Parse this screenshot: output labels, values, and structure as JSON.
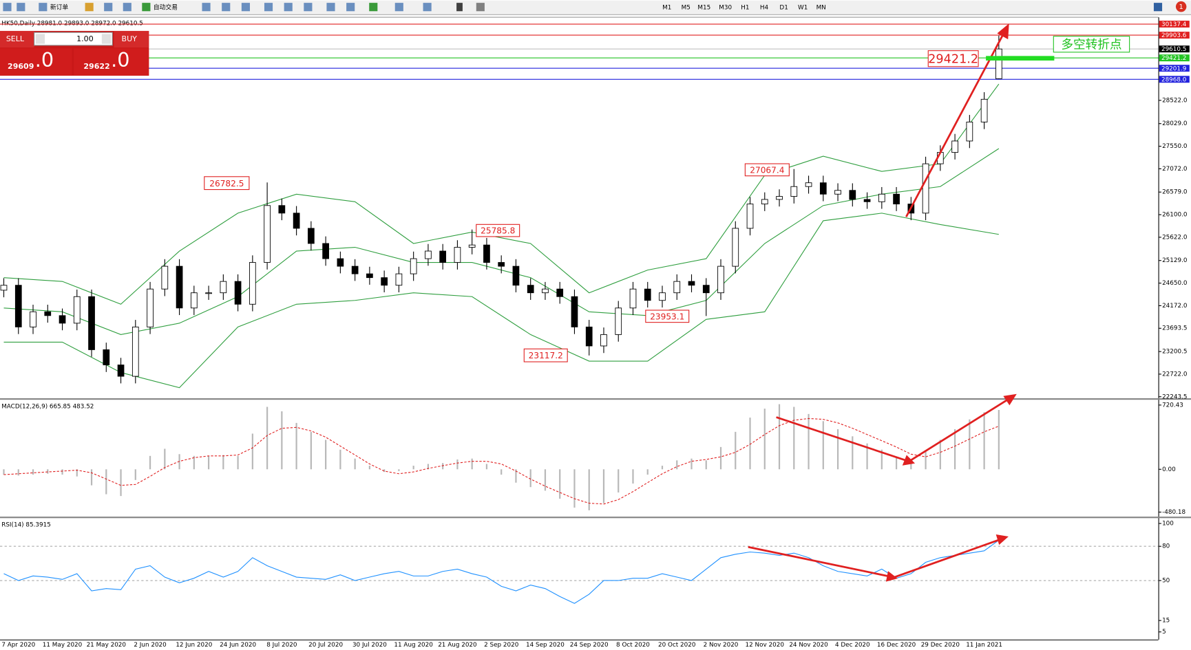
{
  "toolbar": {
    "buttons": [
      "新订单",
      "自动交易"
    ],
    "timeframes": [
      "M1",
      "M5",
      "M15",
      "M30",
      "H1",
      "H4",
      "D1",
      "W1",
      "MN"
    ],
    "notifications": 1
  },
  "trade_panel": {
    "sell": "SELL",
    "buy": "BUY",
    "lots": "1.00",
    "bid": "29609",
    "bid_tail": ".0",
    "ask": "29622",
    "ask_tail": ".0"
  },
  "chart_data": [
    {
      "type": "candlestick",
      "title": "HK50,Daily 28981.0 29893.0 28972.0 29610.5",
      "categories": [
        null,
        "7 Apr 2020",
        null,
        null,
        "11 May 2020",
        null,
        null,
        "21 May 2020",
        null,
        null,
        "2 Jun 2020",
        null,
        null,
        "12 Jun 2020",
        null,
        null,
        "24 Jun 2020",
        null,
        null,
        "8 Jul 2020",
        null,
        null,
        "20 Jul 2020",
        null,
        null,
        "30 Jul 2020",
        null,
        null,
        "11 Aug 2020",
        null,
        null,
        "21 Aug 2020",
        null,
        null,
        "2 Sep 2020",
        null,
        null,
        "14 Sep 2020",
        null,
        null,
        "24 Sep 2020",
        null,
        null,
        "8 Oct 2020",
        null,
        null,
        "20 Oct 2020",
        null,
        null,
        "2 Nov 2020",
        null,
        null,
        "12 Nov 2020",
        null,
        null,
        "24 Nov 2020",
        null,
        null,
        "4 Dec 2020",
        null,
        null,
        "16 Dec 2020",
        null,
        null,
        "29 Dec 2020",
        null,
        null,
        "11 Jan 2021",
        null
      ],
      "open": [
        24500,
        24605,
        23721,
        24043,
        23962,
        23801,
        24364,
        23239,
        22917,
        22676,
        23721,
        24525,
        25007,
        24123,
        24445,
        24445,
        24686,
        24203,
        25088,
        26294,
        26133,
        25811,
        25490,
        25168,
        25007,
        24847,
        24766,
        24605,
        24847,
        25168,
        25329,
        25088,
        25409,
        25458,
        25088,
        25007,
        24605,
        24445,
        24525,
        24364,
        23721,
        23319,
        23560,
        24123,
        24525,
        24284,
        24445,
        24686,
        24605,
        24445,
        25007,
        25811,
        26326,
        26423,
        26487,
        26696,
        26776,
        26535,
        26615,
        26423,
        26374,
        26535,
        26326,
        26133,
        27178,
        27419,
        27661,
        28063,
        28981
      ],
      "high": [
        24755,
        24755,
        24193,
        24193,
        24112,
        24514,
        24514,
        23389,
        23067,
        23871,
        24675,
        25157,
        25157,
        24595,
        24595,
        24836,
        24836,
        25238,
        26782.5,
        26444,
        26283,
        25961,
        25640,
        25318,
        25157,
        24997,
        24916,
        24997,
        25318,
        25479,
        25479,
        25559,
        25785.8,
        25608,
        25238,
        25157,
        24755,
        24675,
        24675,
        24514,
        23871,
        23710,
        24273,
        24675,
        24675,
        24595,
        24836,
        24836,
        24755,
        25157,
        25961,
        26476,
        26573,
        26637,
        27067.4,
        26926,
        26926,
        26765,
        26765,
        26573,
        26685,
        26685,
        26476,
        27328,
        27569,
        27811,
        28213,
        28695,
        29893
      ],
      "low": [
        24350,
        23571,
        23571,
        23812,
        23651,
        23651,
        23089,
        22767,
        22526,
        22526,
        23571,
        24375,
        23973,
        23973,
        24295,
        24295,
        24053,
        24053,
        24938,
        25983,
        25661,
        25340,
        25018,
        24857,
        24697,
        24616,
        24455,
        24455,
        24697,
        25018,
        24938,
        24938,
        25259,
        24938,
        24857,
        24455,
        24295,
        24295,
        24214,
        23571,
        23117.2,
        23169,
        23410,
        23973,
        24134,
        24134,
        24295,
        24455,
        23953.1,
        24295,
        24857,
        25661,
        26176,
        26273,
        26337,
        26546,
        26385,
        26385,
        26273,
        26224,
        26224,
        26176,
        25983,
        25983,
        27028,
        27269,
        27511,
        27913,
        28972
      ],
      "close": [
        24605,
        23721,
        24043,
        23962,
        23801,
        24364,
        23239,
        22917,
        22676,
        23721,
        24525,
        25007,
        24123,
        24445,
        24445,
        24686,
        24203,
        25088,
        26294,
        26133,
        25811,
        25490,
        25168,
        25007,
        24847,
        24766,
        24605,
        24847,
        25168,
        25329,
        25088,
        25409,
        25458,
        25088,
        25007,
        24605,
        24445,
        24525,
        24364,
        23721,
        23319,
        23560,
        24123,
        24525,
        24284,
        24445,
        24686,
        24605,
        24445,
        25007,
        25811,
        26326,
        26423,
        26487,
        26696,
        26776,
        26535,
        26615,
        26423,
        26374,
        26535,
        26326,
        26133,
        27178,
        27419,
        27661,
        28063,
        28545,
        29610.5
      ],
      "bollinger": [
        [
          24766,
          24686,
          24203,
          25329,
          26133,
          26535,
          26374,
          25490,
          25731,
          25490,
          24445,
          24927,
          25168,
          26937,
          27339,
          27017,
          27178,
          28867
        ],
        [
          24123,
          24043,
          23560,
          23801,
          24364,
          25329,
          25409,
          25088,
          25088,
          24766,
          24043,
          23962,
          24284,
          25490,
          26294,
          26535,
          26696,
          27500
        ],
        [
          23399,
          23399,
          22756,
          22435,
          23721,
          24203,
          24284,
          24445,
          24364,
          23560,
          22997,
          22997,
          23882,
          24043,
          25972,
          26133,
          25892,
          25683
        ]
      ],
      "bollinger_color": "#2e9e3e",
      "ylim": [
        22211.3,
        30282.1
      ],
      "yticks": [
        {
          "value": 28522,
          "label": "28522.0"
        },
        {
          "value": 28029,
          "label": "28029.0"
        },
        {
          "value": 27550,
          "label": "27550.0"
        },
        {
          "value": 27072,
          "label": "27072.0"
        },
        {
          "value": 26579,
          "label": "26579.0"
        },
        {
          "value": 26100,
          "label": "26100.0"
        },
        {
          "value": 25622,
          "label": "25622.0"
        },
        {
          "value": 25129,
          "label": "25129.0"
        },
        {
          "value": 24650,
          "label": "24650.0"
        },
        {
          "value": 24172,
          "label": "24172.0"
        },
        23693.5,
        23200.5,
        {
          "value": 22722,
          "label": "22722.0"
        },
        22243.5
      ],
      "levels": [
        {
          "value": 30137.4,
          "color": "#e02020",
          "line": "#e02020"
        },
        {
          "value": 29903.6,
          "color": "#e02020",
          "line": "#e02020"
        },
        {
          "value": 29610.5,
          "color": "#000000",
          "line": "#c0c0c0"
        },
        {
          "value": 29421.2,
          "color": "#22c322",
          "line": "#22c322"
        },
        {
          "value": 29201.9,
          "color": "#2222dd",
          "line": "#2222dd"
        },
        {
          "value": 28968,
          "label": "28968.0",
          "color": "#2222dd",
          "line": "#2222dd"
        }
      ],
      "annotations": [
        "26782.5",
        "25785.8",
        "23117.2",
        "23953.1",
        "27067.4",
        "29421.2",
        "多空转折点"
      ]
    },
    {
      "type": "macd",
      "title": "MACD(12,26,9) 665.85 483.52",
      "histogram": [
        -60,
        -70,
        -60,
        -50,
        -60,
        -80,
        -180,
        -280,
        -300,
        -120,
        150,
        230,
        170,
        150,
        150,
        160,
        150,
        400,
        700,
        650,
        520,
        420,
        330,
        220,
        120,
        40,
        -30,
        -20,
        40,
        60,
        70,
        110,
        120,
        60,
        -60,
        -150,
        -200,
        -240,
        -330,
        -430,
        -460,
        -380,
        -260,
        -160,
        -60,
        40,
        100,
        120,
        100,
        250,
        420,
        580,
        680,
        730,
        700,
        620,
        540,
        450,
        370,
        290,
        220,
        140,
        70,
        200,
        330,
        450,
        560,
        640,
        665.85
      ],
      "signal": [
        -60,
        -50,
        -40,
        -30,
        -20,
        -10,
        -40,
        -110,
        -180,
        -170,
        -80,
        20,
        90,
        130,
        150,
        150,
        160,
        240,
        380,
        460,
        470,
        430,
        360,
        260,
        160,
        60,
        -20,
        -50,
        -30,
        10,
        40,
        70,
        90,
        90,
        60,
        -20,
        -110,
        -190,
        -260,
        -330,
        -380,
        -390,
        -340,
        -250,
        -150,
        -50,
        30,
        90,
        110,
        140,
        190,
        280,
        390,
        490,
        550,
        570,
        560,
        520,
        460,
        390,
        320,
        250,
        170,
        140,
        190,
        260,
        340,
        420,
        483.52
      ],
      "histogram_color": "#b8b8b8",
      "signal_color": "#e02020",
      "ylim": [
        -531,
        780
      ],
      "yticks": [
        720.43,
        {
          "value": 0,
          "label": "0.00"
        },
        -480.18
      ]
    },
    {
      "type": "rsi",
      "title": "RSI(14) 85.3915",
      "values": [
        56,
        50,
        54,
        53,
        51,
        56,
        41,
        43,
        42,
        60,
        63,
        53,
        48,
        52,
        58,
        53,
        58,
        70,
        63,
        58,
        53,
        52,
        51,
        55,
        50,
        53,
        56,
        58,
        54,
        54,
        58,
        60,
        56,
        53,
        45,
        41,
        46,
        43,
        36,
        30,
        38,
        50,
        50,
        52,
        52,
        56,
        53,
        50,
        60,
        70,
        73,
        75,
        74,
        72,
        74,
        70,
        63,
        58,
        56,
        54,
        60,
        52,
        56,
        66,
        70,
        72,
        74,
        76,
        85.3915
      ],
      "color": "#1e90ff",
      "ylim": [
        -1.7,
        104
      ],
      "yticks": [
        100,
        80,
        50,
        15,
        5
      ],
      "levels": [
        80,
        50
      ]
    }
  ]
}
